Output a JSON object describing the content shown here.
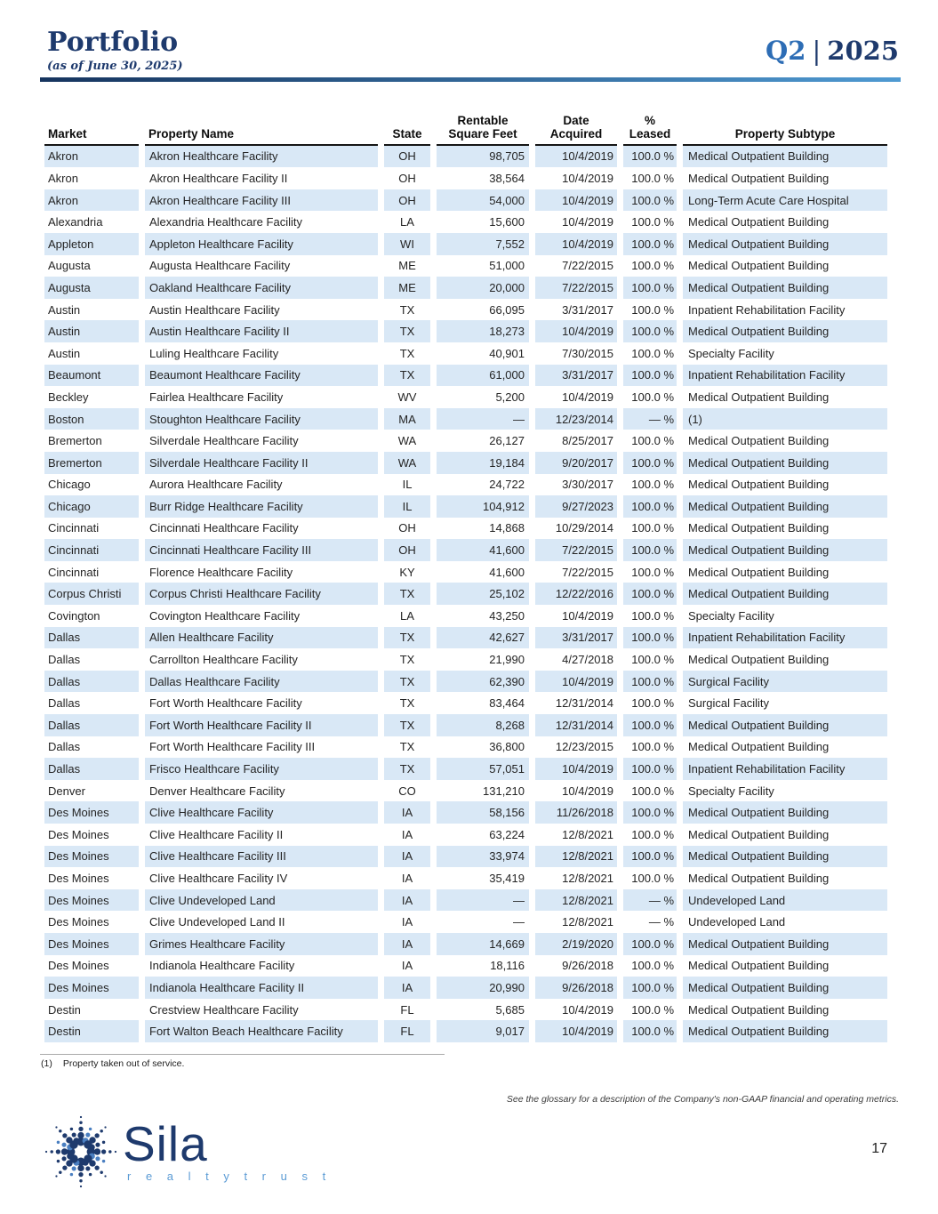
{
  "header": {
    "title": "Portfolio",
    "subtitle": "(as of June 30, 2025)",
    "quarter": "Q2",
    "separator": "|",
    "year": "2025"
  },
  "table": {
    "columns": [
      {
        "lines": [
          "Market"
        ]
      },
      {
        "lines": [
          "Property Name"
        ]
      },
      {
        "lines": [
          "State"
        ]
      },
      {
        "lines": [
          "Rentable",
          "Square Feet"
        ]
      },
      {
        "lines": [
          "Date",
          "Acquired"
        ]
      },
      {
        "lines": [
          "%",
          "Leased"
        ]
      },
      {
        "lines": [
          "Property Subtype"
        ]
      }
    ],
    "rows": [
      [
        "Akron",
        "Akron Healthcare Facility",
        "OH",
        "98,705",
        "10/4/2019",
        "100.0 %",
        "Medical Outpatient Building"
      ],
      [
        "Akron",
        "Akron Healthcare Facility II",
        "OH",
        "38,564",
        "10/4/2019",
        "100.0 %",
        "Medical Outpatient Building"
      ],
      [
        "Akron",
        "Akron Healthcare Facility III",
        "OH",
        "54,000",
        "10/4/2019",
        "100.0 %",
        "Long-Term Acute Care Hospital"
      ],
      [
        "Alexandria",
        "Alexandria Healthcare Facility",
        "LA",
        "15,600",
        "10/4/2019",
        "100.0 %",
        "Medical Outpatient Building"
      ],
      [
        "Appleton",
        "Appleton Healthcare Facility",
        "WI",
        "7,552",
        "10/4/2019",
        "100.0 %",
        "Medical Outpatient Building"
      ],
      [
        "Augusta",
        "Augusta Healthcare Facility",
        "ME",
        "51,000",
        "7/22/2015",
        "100.0 %",
        "Medical Outpatient Building"
      ],
      [
        "Augusta",
        "Oakland Healthcare Facility",
        "ME",
        "20,000",
        "7/22/2015",
        "100.0 %",
        "Medical Outpatient Building"
      ],
      [
        "Austin",
        "Austin Healthcare Facility",
        "TX",
        "66,095",
        "3/31/2017",
        "100.0 %",
        "Inpatient Rehabilitation Facility"
      ],
      [
        "Austin",
        "Austin Healthcare Facility II",
        "TX",
        "18,273",
        "10/4/2019",
        "100.0 %",
        "Medical Outpatient Building"
      ],
      [
        "Austin",
        "Luling Healthcare Facility",
        "TX",
        "40,901",
        "7/30/2015",
        "100.0 %",
        "Specialty Facility"
      ],
      [
        "Beaumont",
        "Beaumont Healthcare Facility",
        "TX",
        "61,000",
        "3/31/2017",
        "100.0 %",
        "Inpatient Rehabilitation Facility"
      ],
      [
        "Beckley",
        "Fairlea Healthcare Facility",
        "WV",
        "5,200",
        "10/4/2019",
        "100.0 %",
        "Medical Outpatient Building"
      ],
      [
        "Boston",
        "Stoughton Healthcare Facility",
        "MA",
        "—",
        "12/23/2014",
        "— %",
        "(1)"
      ],
      [
        "Bremerton",
        "Silverdale Healthcare Facility",
        "WA",
        "26,127",
        "8/25/2017",
        "100.0 %",
        "Medical Outpatient Building"
      ],
      [
        "Bremerton",
        "Silverdale Healthcare Facility II",
        "WA",
        "19,184",
        "9/20/2017",
        "100.0 %",
        "Medical Outpatient Building"
      ],
      [
        "Chicago",
        "Aurora Healthcare Facility",
        "IL",
        "24,722",
        "3/30/2017",
        "100.0 %",
        "Medical Outpatient Building"
      ],
      [
        "Chicago",
        "Burr Ridge Healthcare Facility",
        "IL",
        "104,912",
        "9/27/2023",
        "100.0 %",
        "Medical Outpatient Building"
      ],
      [
        "Cincinnati",
        "Cincinnati Healthcare Facility",
        "OH",
        "14,868",
        "10/29/2014",
        "100.0 %",
        "Medical Outpatient Building"
      ],
      [
        "Cincinnati",
        "Cincinnati Healthcare Facility III",
        "OH",
        "41,600",
        "7/22/2015",
        "100.0 %",
        "Medical Outpatient Building"
      ],
      [
        "Cincinnati",
        "Florence Healthcare Facility",
        "KY",
        "41,600",
        "7/22/2015",
        "100.0 %",
        "Medical Outpatient Building"
      ],
      [
        "Corpus Christi",
        "Corpus Christi Healthcare Facility",
        "TX",
        "25,102",
        "12/22/2016",
        "100.0 %",
        "Medical Outpatient Building"
      ],
      [
        "Covington",
        "Covington Healthcare Facility",
        "LA",
        "43,250",
        "10/4/2019",
        "100.0 %",
        "Specialty Facility"
      ],
      [
        "Dallas",
        "Allen Healthcare Facility",
        "TX",
        "42,627",
        "3/31/2017",
        "100.0 %",
        "Inpatient Rehabilitation Facility"
      ],
      [
        "Dallas",
        "Carrollton Healthcare Facility",
        "TX",
        "21,990",
        "4/27/2018",
        "100.0 %",
        "Medical Outpatient Building"
      ],
      [
        "Dallas",
        "Dallas Healthcare Facility",
        "TX",
        "62,390",
        "10/4/2019",
        "100.0 %",
        "Surgical Facility"
      ],
      [
        "Dallas",
        "Fort Worth Healthcare Facility",
        "TX",
        "83,464",
        "12/31/2014",
        "100.0 %",
        "Surgical Facility"
      ],
      [
        "Dallas",
        "Fort Worth Healthcare Facility II",
        "TX",
        "8,268",
        "12/31/2014",
        "100.0 %",
        "Medical Outpatient Building"
      ],
      [
        "Dallas",
        "Fort Worth Healthcare Facility III",
        "TX",
        "36,800",
        "12/23/2015",
        "100.0 %",
        "Medical Outpatient Building"
      ],
      [
        "Dallas",
        "Frisco Healthcare Facility",
        "TX",
        "57,051",
        "10/4/2019",
        "100.0 %",
        "Inpatient Rehabilitation Facility"
      ],
      [
        "Denver",
        "Denver Healthcare Facility",
        "CO",
        "131,210",
        "10/4/2019",
        "100.0 %",
        "Specialty Facility"
      ],
      [
        "Des Moines",
        "Clive Healthcare Facility",
        "IA",
        "58,156",
        "11/26/2018",
        "100.0 %",
        "Medical Outpatient Building"
      ],
      [
        "Des Moines",
        "Clive Healthcare Facility II",
        "IA",
        "63,224",
        "12/8/2021",
        "100.0 %",
        "Medical Outpatient Building"
      ],
      [
        "Des Moines",
        "Clive Healthcare Facility III",
        "IA",
        "33,974",
        "12/8/2021",
        "100.0 %",
        "Medical Outpatient Building"
      ],
      [
        "Des Moines",
        "Clive Healthcare Facility IV",
        "IA",
        "35,419",
        "12/8/2021",
        "100.0 %",
        "Medical Outpatient Building"
      ],
      [
        "Des Moines",
        "Clive Undeveloped Land",
        "IA",
        "—",
        "12/8/2021",
        "— %",
        "Undeveloped Land"
      ],
      [
        "Des Moines",
        "Clive Undeveloped Land II",
        "IA",
        "—",
        "12/8/2021",
        "— %",
        "Undeveloped Land"
      ],
      [
        "Des Moines",
        "Grimes Healthcare Facility",
        "IA",
        "14,669",
        "2/19/2020",
        "100.0 %",
        "Medical Outpatient Building"
      ],
      [
        "Des Moines",
        "Indianola Healthcare Facility",
        "IA",
        "18,116",
        "9/26/2018",
        "100.0 %",
        "Medical Outpatient Building"
      ],
      [
        "Des Moines",
        "Indianola Healthcare Facility II",
        "IA",
        "20,990",
        "9/26/2018",
        "100.0 %",
        "Medical Outpatient Building"
      ],
      [
        "Destin",
        "Crestview Healthcare Facility",
        "FL",
        "5,685",
        "10/4/2019",
        "100.0 %",
        "Medical Outpatient Building"
      ],
      [
        "Destin",
        "Fort Walton Beach Healthcare Facility",
        "FL",
        "9,017",
        "10/4/2019",
        "100.0 %",
        "Medical Outpatient Building"
      ]
    ]
  },
  "footnote": {
    "marker": "(1)",
    "text": "Property taken out of service."
  },
  "glossary_note": "See the glossary for a description of the Company's non-GAAP financial and operating metrics.",
  "logo": {
    "name": "Sila",
    "tagline": "r e a l t y   t r u s t"
  },
  "page_number": "17",
  "colors": {
    "accent_navy": "#1e3a6d",
    "accent_blue": "#2d6db5",
    "rule_gradient_start": "#16345e",
    "rule_gradient_end": "#4f9ad2",
    "row_stripe": "#d9e8f6",
    "tagline_blue": "#5b9bd5"
  }
}
